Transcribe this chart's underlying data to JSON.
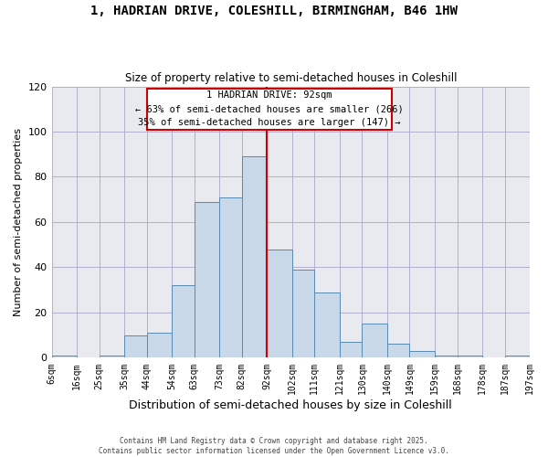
{
  "title1": "1, HADRIAN DRIVE, COLESHILL, BIRMINGHAM, B46 1HW",
  "title2": "Size of property relative to semi-detached houses in Coleshill",
  "xlabel": "Distribution of semi-detached houses by size in Coleshill",
  "ylabel": "Number of semi-detached properties",
  "bin_labels": [
    "6sqm",
    "16sqm",
    "25sqm",
    "35sqm",
    "44sqm",
    "54sqm",
    "63sqm",
    "73sqm",
    "82sqm",
    "92sqm",
    "102sqm",
    "111sqm",
    "121sqm",
    "130sqm",
    "140sqm",
    "149sqm",
    "159sqm",
    "168sqm",
    "178sqm",
    "187sqm",
    "197sqm"
  ],
  "bin_edges": [
    6,
    16,
    25,
    35,
    44,
    54,
    63,
    73,
    82,
    92,
    102,
    111,
    121,
    130,
    140,
    149,
    159,
    168,
    178,
    187,
    197
  ],
  "bar_heights": [
    1,
    0,
    1,
    10,
    11,
    32,
    69,
    71,
    89,
    48,
    39,
    29,
    7,
    15,
    6,
    3,
    1,
    1,
    0,
    1
  ],
  "bar_color": "#c8d8e8",
  "bar_edge_color": "#5a8ab0",
  "property_value": 92,
  "red_line_color": "#cc0000",
  "annotation_text1": "1 HADRIAN DRIVE: 92sqm",
  "annotation_text2": "← 63% of semi-detached houses are smaller (266)",
  "annotation_text3": "35% of semi-detached houses are larger (147) →",
  "grid_color": "#b0b0cc",
  "background_color": "#e8eaf0",
  "footer1": "Contains HM Land Registry data © Crown copyright and database right 2025.",
  "footer2": "Contains public sector information licensed under the Open Government Licence v3.0.",
  "ylim": [
    0,
    120
  ],
  "yticks": [
    0,
    20,
    40,
    60,
    80,
    100,
    120
  ]
}
